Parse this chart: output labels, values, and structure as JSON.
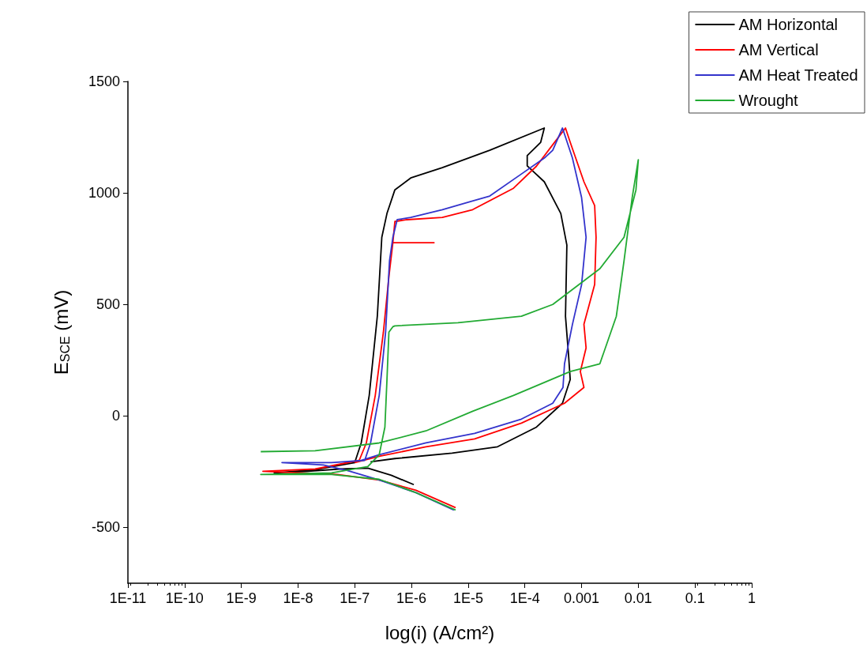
{
  "chart_data": {
    "type": "line",
    "xlabel": "log(i) (A/cm²)",
    "ylabel": "E$_{SCE}$ (mV)",
    "log": "x",
    "grid": false,
    "legend": "top right",
    "marker": "none",
    "line_style": "solid",
    "xlim": [
      1e-11,
      1
    ],
    "ylim": [
      -750,
      1500
    ],
    "xticks": [
      {
        "value": 1e-11,
        "label": "1E-11"
      },
      {
        "value": 1e-10,
        "label": "1E-10"
      },
      {
        "value": 1e-09,
        "label": "1E-9"
      },
      {
        "value": 1e-08,
        "label": "1E-8"
      },
      {
        "value": 1e-07,
        "label": "1E-7"
      },
      {
        "value": 1e-06,
        "label": "1E-6"
      },
      {
        "value": 1e-05,
        "label": "1E-5"
      },
      {
        "value": 0.0001,
        "label": "1E-4"
      },
      {
        "value": 0.001,
        "label": "0.001"
      },
      {
        "value": 0.01,
        "label": "0.01"
      },
      {
        "value": 0.1,
        "label": "0.1"
      },
      {
        "value": 1,
        "label": "1"
      }
    ],
    "yticks": [
      -500,
      0,
      500,
      1000,
      1500
    ],
    "series": [
      {
        "name": "AM Horizontal",
        "color": "#000000",
        "x": [
          1.1e-06,
          4.4e-07,
          1.7e-07,
          5.4e-08,
          1.5e-08,
          3.8e-09,
          2e-08,
          1e-07,
          1.3e-07,
          1.8e-07,
          2.5e-07,
          3e-07,
          3.7e-07,
          5.1e-07,
          9.7e-07,
          3.5e-06,
          2.4e-05,
          0.00022,
          0.00019,
          0.00011,
          0.00011,
          0.00022,
          0.00043,
          0.00055,
          0.00052,
          0.00059,
          0.00063,
          0.00046,
          0.00016,
          3.3e-05,
          5.2e-06,
          5.1e-07,
          1.9e-07
        ],
        "values": [
          -308,
          -266,
          -234,
          -238,
          -248,
          -255,
          -241,
          -209,
          -121,
          92,
          447,
          801,
          908,
          1014,
          1067,
          1113,
          1191,
          1291,
          1227,
          1167,
          1121,
          1050,
          908,
          766,
          447,
          270,
          163,
          57,
          -50,
          -138,
          -167,
          -191,
          -206
        ]
      },
      {
        "name": "AM Vertical",
        "color": "#ff0000",
        "x": [
          6e-06,
          1.2e-06,
          2.7e-07,
          4.9e-08,
          2.4e-09,
          2e-08,
          1.2e-07,
          1.6e-07,
          2.3e-07,
          3.2e-07,
          4e-07,
          4.7e-07,
          2.5e-06,
          4.7e-07,
          5.1e-07,
          8.3e-07,
          3.5e-06,
          1.2e-05,
          6.3e-05,
          0.00016,
          0.00031,
          0.00052,
          0.00063,
          0.0011,
          0.0017,
          0.0018,
          0.0017,
          0.0011,
          0.0012,
          0.00095,
          0.0011,
          0.0005,
          8.7e-05,
          1.3e-05,
          1.8e-06,
          2.7e-07,
          1e-07
        ],
        "values": [
          -411,
          -333,
          -287,
          -262,
          -248,
          -238,
          -199,
          -121,
          92,
          376,
          624,
          777,
          777,
          777,
          872,
          880,
          890,
          925,
          1021,
          1120,
          1216,
          1291,
          1227,
          1050,
          943,
          801,
          589,
          411,
          305,
          199,
          128,
          57,
          -32,
          -103,
          -138,
          -181,
          -209
        ]
      },
      {
        "name": "AM Heat Treated",
        "color": "#3333cc",
        "x": [
          5.6e-06,
          1.2e-06,
          2.7e-07,
          7.4e-08,
          2.8e-08,
          5.2e-09,
          3.9e-08,
          1.5e-07,
          1.9e-07,
          2.7e-07,
          3.5e-07,
          4.1e-07,
          4.7e-07,
          5.6e-07,
          9.7e-07,
          3.5e-06,
          2.4e-05,
          8.7e-05,
          0.00022,
          0.00031,
          0.00046,
          0.00069,
          0.001,
          0.0012,
          0.001,
          0.00069,
          0.0005,
          0.00047,
          0.00031,
          8.7e-05,
          1.3e-05,
          1.8e-06,
          2.7e-07,
          1.2e-07
        ],
        "values": [
          -422,
          -344,
          -287,
          -245,
          -220,
          -209,
          -209,
          -199,
          -121,
          92,
          376,
          695,
          801,
          880,
          890,
          925,
          986,
          1085,
          1156,
          1191,
          1291,
          1156,
          979,
          801,
          589,
          411,
          234,
          128,
          57,
          -14,
          -78,
          -121,
          -174,
          -202
        ]
      },
      {
        "name": "Wrought",
        "color": "#22aa33",
        "x": [
          6e-06,
          1.1e-06,
          2.7e-07,
          3.9e-08,
          2.2e-09,
          3.9e-08,
          1.7e-07,
          2.7e-07,
          3.4e-07,
          3.7e-07,
          4e-07,
          4.7e-07,
          5.1e-07,
          6.6e-06,
          8.7e-05,
          0.00031,
          0.0021,
          0.0056,
          0.0091,
          0.01,
          0.0078,
          0.0056,
          0.0041,
          0.0021,
          0.00063,
          6.3e-05,
          1.2e-05,
          1.8e-06,
          2.7e-07,
          2e-08,
          2.2e-09
        ],
        "values": [
          -422,
          -340,
          -284,
          -262,
          -262,
          -255,
          -227,
          -174,
          -50,
          163,
          376,
          400,
          404,
          418,
          447,
          500,
          660,
          801,
          1014,
          1149,
          979,
          695,
          447,
          234,
          199,
          92,
          21,
          -67,
          -121,
          -156,
          -160
        ]
      }
    ]
  }
}
